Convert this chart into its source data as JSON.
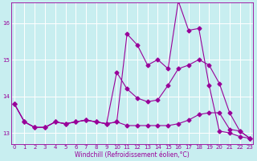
{
  "xlabel": "Windchill (Refroidissement éolien,°C)",
  "bg_color": "#c8eef0",
  "line_color": "#990099",
  "grid_color": "#ffffff",
  "x_ticks": [
    0,
    1,
    2,
    3,
    4,
    5,
    6,
    7,
    8,
    9,
    10,
    11,
    12,
    13,
    14,
    15,
    16,
    17,
    18,
    19,
    20,
    21,
    22,
    23
  ],
  "y_ticks": [
    13,
    14,
    15,
    16
  ],
  "ylim": [
    12.7,
    16.55
  ],
  "xlim": [
    -0.3,
    23.3
  ],
  "series": [
    [
      13.8,
      13.3,
      13.15,
      13.15,
      13.3,
      13.25,
      13.3,
      13.35,
      13.3,
      13.25,
      13.3,
      15.7,
      15.4,
      14.85,
      15.0,
      14.75,
      16.6,
      15.8,
      15.85,
      14.3,
      13.05,
      13.0,
      12.9,
      12.85
    ],
    [
      13.8,
      13.3,
      13.15,
      13.15,
      13.3,
      13.25,
      13.3,
      13.35,
      13.3,
      13.25,
      14.65,
      14.2,
      13.95,
      13.85,
      13.9,
      14.3,
      14.75,
      14.85,
      15.0,
      14.85,
      14.35,
      13.55,
      13.05,
      12.85
    ],
    [
      13.8,
      13.3,
      13.15,
      13.15,
      13.3,
      13.25,
      13.3,
      13.35,
      13.3,
      13.25,
      13.3,
      13.2,
      13.2,
      13.2,
      13.2,
      13.2,
      13.25,
      13.35,
      13.5,
      13.55,
      13.55,
      13.1,
      13.05,
      12.85
    ]
  ],
  "marker": "D",
  "markersize": 2.5,
  "linewidth": 0.8,
  "tick_fontsize": 5.0,
  "axis_fontsize": 5.5
}
